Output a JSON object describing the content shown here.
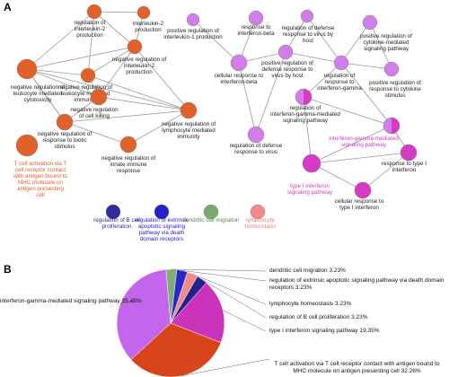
{
  "panel_a": {
    "label": "A",
    "nodes": [
      {
        "label": [
          "regulation of",
          "interleukin-2",
          "production"
        ]
      },
      {
        "label": [
          "interleukin-2",
          "production"
        ]
      },
      {
        "label": [
          "negative regulation of",
          "interleukin-2",
          "production"
        ]
      },
      {
        "label": [
          "negative regulation of",
          "leukocyte mediated",
          "immunity"
        ]
      },
      {
        "label": [
          "negative regulation of",
          "leukocyte mediated",
          "cytotoxicity"
        ]
      },
      {
        "label": [
          "negative regulation",
          "of cell killing"
        ]
      },
      {
        "label": [
          "negative regulation of",
          "lymphocyte mediated",
          "immunity"
        ]
      },
      {
        "label": [
          "negative regulation of",
          "response to biotic",
          "stimulus"
        ]
      },
      {
        "label": [
          "negative regulation of",
          "innate immune",
          "response"
        ]
      },
      {
        "label": [
          "T cell activation via T",
          "cell receptor contact",
          "with antigen bound to",
          "MHC molecule on",
          "antigen presenting",
          "cell"
        ]
      },
      {
        "label": [
          "positive regulation of",
          "interleukin-1 production"
        ]
      },
      {
        "label": [
          "response to",
          "interferon-beta"
        ]
      },
      {
        "label": [
          "regulation of defense",
          "response to virus by",
          "host"
        ]
      },
      {
        "label": [
          "positive regulation of",
          "cytokine-mediated",
          "signaling pathway"
        ]
      },
      {
        "label": [
          "cellular response to",
          "interferon-beta"
        ]
      },
      {
        "label": [
          "positive regulation of",
          "defense response to",
          "virus by host"
        ]
      },
      {
        "label": [
          "regulation of",
          "response to",
          "interferon-gamma"
        ]
      },
      {
        "label": [
          "positive regulation of",
          "response to cytokine",
          "stimulus"
        ]
      },
      {
        "label": [
          "regulation of",
          "interferon-gamma-mediated",
          "signaling pathway"
        ]
      },
      {
        "label": [
          "regulation of defense",
          "response to virus"
        ]
      },
      {
        "label": [
          "interferon-gamma-mediated",
          "signaling pathway"
        ]
      },
      {
        "label": [
          "response to type I",
          "interferon"
        ]
      },
      {
        "label": [
          "type I interferon",
          "signaling pathway"
        ]
      },
      {
        "label": [
          "cellular response to",
          "type I interferon"
        ]
      },
      {
        "label": [
          "regulation of B cell",
          "proliferation"
        ]
      },
      {
        "label": [
          "regulation of extrinsic",
          "apoptotic signaling",
          "pathway via death",
          "domain receptors"
        ]
      },
      {
        "label": [
          "dendritic cell migration"
        ]
      },
      {
        "label": [
          "lymphocyte",
          "homeostasis"
        ]
      }
    ]
  },
  "chart_data": {
    "type": "pie",
    "panel_label": "B",
    "categories": [
      "dendritic cell migration",
      "regulation of extrinsic apoptotic signaling pathway via death domain receptors",
      "lymphocyte homeostasis",
      "regulation of B cell proliferation",
      "type I interferon signaling pathway",
      "T cell activation via T cell receptor contact with antigen bound to MHC molecule on antigen presenting cell",
      "interferon-gamma-mediated signaling pathway"
    ],
    "values": [
      3.23,
      3.23,
      3.23,
      3.23,
      19.35,
      32.26,
      35.48
    ],
    "value_labels": [
      "3.23%",
      "3.23%",
      "3.23%",
      "3.23%",
      "19.35%",
      "32.26%",
      "35.48%"
    ],
    "colors": [
      "#7fae74",
      "#2828c8",
      "#f28a8a",
      "#22228a",
      "#cc33bb",
      "#d8451c",
      "#c466ec"
    ]
  }
}
